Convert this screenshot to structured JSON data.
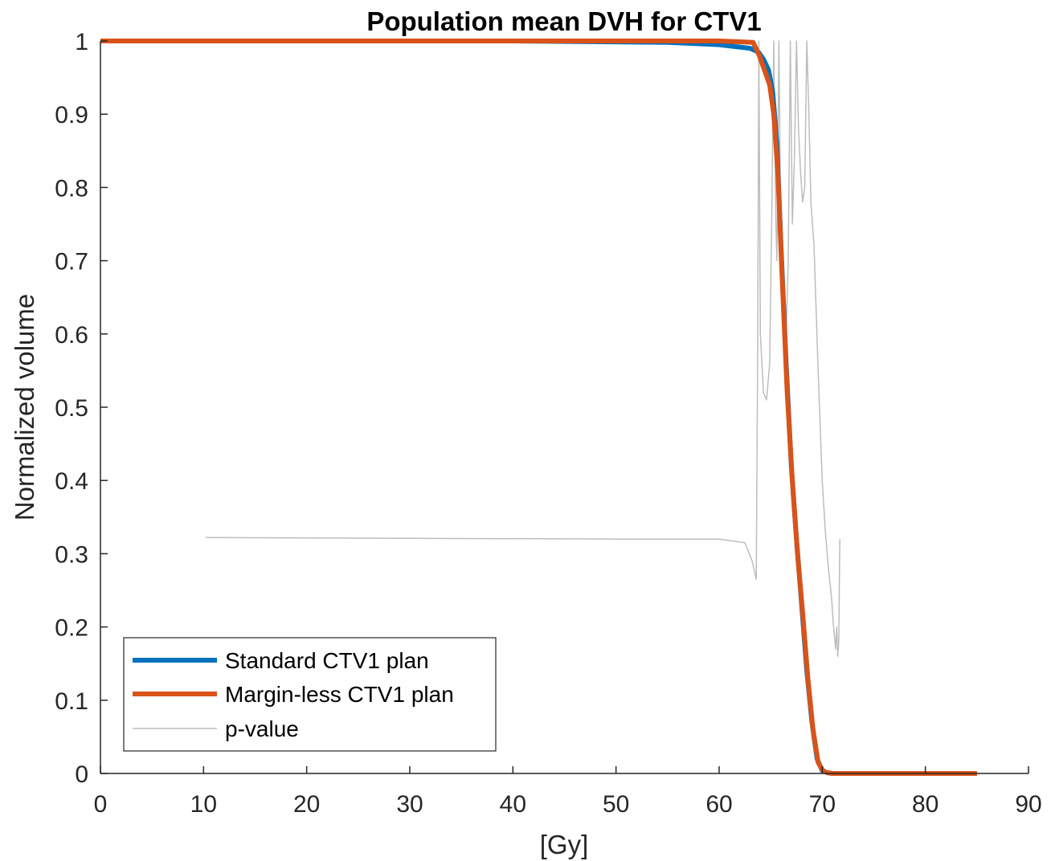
{
  "chart_data": {
    "type": "line",
    "title": "Population mean DVH for CTV1",
    "xlabel": "[Gy]",
    "ylabel": "Normalized volume",
    "xlim": [
      0,
      90
    ],
    "ylim": [
      0,
      1
    ],
    "xticks": [
      0,
      10,
      20,
      30,
      40,
      50,
      60,
      70,
      80,
      90
    ],
    "yticks": [
      0,
      0.1,
      0.2,
      0.3,
      0.4,
      0.5,
      0.6,
      0.7,
      0.8,
      0.9,
      1
    ],
    "grid": false,
    "legend_position": "bottom-left",
    "series": [
      {
        "name": "Standard CTV1 plan",
        "color": "#0072BD",
        "x": [
          0,
          40,
          55,
          60,
          63,
          63.8,
          64.3,
          64.8,
          65.2,
          65.6,
          66.0,
          66.5,
          67.0,
          67.5,
          68.0,
          68.5,
          69.0,
          69.5,
          70.0,
          70.5,
          71,
          85
        ],
        "y": [
          1,
          1,
          0.998,
          0.995,
          0.99,
          0.985,
          0.975,
          0.96,
          0.93,
          0.86,
          0.72,
          0.56,
          0.42,
          0.32,
          0.23,
          0.14,
          0.07,
          0.02,
          0.004,
          0.001,
          0,
          0
        ]
      },
      {
        "name": "Margin-less CTV1 plan",
        "color": "#D95319",
        "x": [
          0,
          40,
          55,
          60,
          63.3,
          63.9,
          64.4,
          64.9,
          65.3,
          65.7,
          66.1,
          66.6,
          67.1,
          67.6,
          68.1,
          68.6,
          69.1,
          69.6,
          70.1,
          70.5,
          71,
          85
        ],
        "y": [
          1,
          1,
          1,
          1,
          0.998,
          0.98,
          0.96,
          0.94,
          0.9,
          0.82,
          0.68,
          0.52,
          0.4,
          0.3,
          0.22,
          0.13,
          0.06,
          0.015,
          0.003,
          0.001,
          0,
          0
        ]
      },
      {
        "name": "p-value",
        "color": "#BDBDBD",
        "x": [
          10.2,
          30,
          50,
          60,
          62.5,
          63.2,
          63.6,
          63.75,
          63.85,
          64.0,
          64.3,
          64.6,
          64.9,
          65.1,
          65.3,
          65.5,
          65.6,
          65.8,
          66.0,
          66.2,
          66.5,
          66.7,
          66.9,
          67.1,
          67.3,
          67.5,
          67.7,
          67.9,
          68.1,
          68.3,
          68.5,
          68.7,
          68.9,
          69.2,
          69.6,
          70.0,
          70.3,
          70.6,
          70.9,
          71.1,
          71.3,
          71.4,
          71.5,
          71.6,
          71.7
        ],
        "y": [
          0.322,
          0.321,
          0.32,
          0.32,
          0.315,
          0.29,
          0.265,
          0.6,
          1.0,
          0.6,
          0.52,
          0.51,
          0.56,
          0.75,
          1.0,
          0.75,
          0.7,
          1.0,
          0.7,
          0.62,
          0.6,
          0.7,
          1.0,
          0.75,
          0.84,
          1.0,
          0.88,
          0.82,
          0.78,
          0.8,
          1.0,
          0.9,
          0.78,
          0.72,
          0.55,
          0.4,
          0.33,
          0.28,
          0.24,
          0.2,
          0.17,
          0.2,
          0.16,
          0.18,
          0.32
        ]
      }
    ]
  }
}
